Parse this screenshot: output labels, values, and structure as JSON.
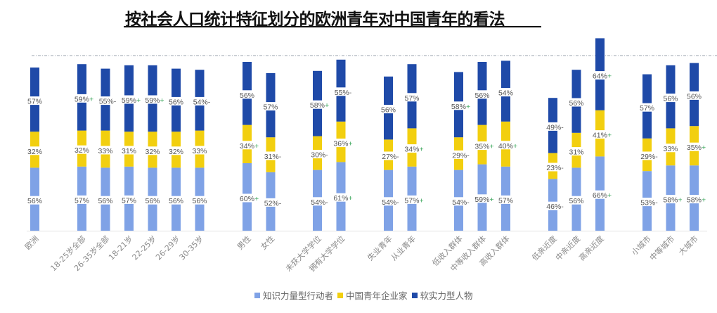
{
  "chart_data": {
    "type": "bar",
    "stacked": true,
    "title": "按社会人口统计特征划分的欧洲青年对中国青年的看法",
    "xlabel": "",
    "ylabel": "",
    "grid": false,
    "reference_line": "dashed horizontal line near top",
    "legend_position": "bottom",
    "colors": {
      "knowledge": "#7fa2e6",
      "entrepreneur": "#f2cf0f",
      "softpower": "#1f4aa8",
      "plus_mark": "#3aa65a",
      "minus_mark": "#666666"
    },
    "series": [
      {
        "key": "knowledge",
        "name": "知识力量型行动者"
      },
      {
        "key": "entrepreneur",
        "name": "中国青年企业家"
      },
      {
        "key": "softpower",
        "name": "软实力型人物"
      }
    ],
    "groups": [
      {
        "categories": [
          {
            "label": "欧洲",
            "knowledge": [
              56,
              ""
            ],
            "entrepreneur": [
              32,
              ""
            ],
            "softpower": [
              57,
              ""
            ]
          }
        ]
      },
      {
        "categories": [
          {
            "label": "18-25岁全部",
            "knowledge": [
              57,
              ""
            ],
            "entrepreneur": [
              32,
              ""
            ],
            "softpower": [
              59,
              "+"
            ]
          },
          {
            "label": "26-35岁全部",
            "knowledge": [
              56,
              ""
            ],
            "entrepreneur": [
              33,
              ""
            ],
            "softpower": [
              55,
              "-"
            ]
          },
          {
            "label": "18-21岁",
            "knowledge": [
              57,
              ""
            ],
            "entrepreneur": [
              31,
              ""
            ],
            "softpower": [
              59,
              "+"
            ]
          },
          {
            "label": "22-25岁",
            "knowledge": [
              56,
              ""
            ],
            "entrepreneur": [
              32,
              ""
            ],
            "softpower": [
              59,
              "+"
            ]
          },
          {
            "label": "26-29岁",
            "knowledge": [
              56,
              ""
            ],
            "entrepreneur": [
              32,
              ""
            ],
            "softpower": [
              56,
              ""
            ]
          },
          {
            "label": "30-35岁",
            "knowledge": [
              56,
              ""
            ],
            "entrepreneur": [
              33,
              ""
            ],
            "softpower": [
              54,
              "-"
            ]
          }
        ]
      },
      {
        "categories": [
          {
            "label": "男性",
            "knowledge": [
              60,
              "+"
            ],
            "entrepreneur": [
              34,
              "+"
            ],
            "softpower": [
              56,
              ""
            ]
          },
          {
            "label": "女性",
            "knowledge": [
              52,
              "-"
            ],
            "entrepreneur": [
              31,
              "-"
            ],
            "softpower": [
              57,
              ""
            ]
          }
        ]
      },
      {
        "categories": [
          {
            "label": "未获大学学位",
            "knowledge": [
              54,
              "-"
            ],
            "entrepreneur": [
              30,
              "-"
            ],
            "softpower": [
              58,
              "+"
            ]
          },
          {
            "label": "拥有大学学位",
            "knowledge": [
              61,
              "+"
            ],
            "entrepreneur": [
              36,
              "+"
            ],
            "softpower": [
              55,
              "-"
            ]
          }
        ]
      },
      {
        "categories": [
          {
            "label": "失业青年",
            "knowledge": [
              54,
              "-"
            ],
            "entrepreneur": [
              27,
              "-"
            ],
            "softpower": [
              56,
              ""
            ]
          },
          {
            "label": "从业青年",
            "knowledge": [
              57,
              "+"
            ],
            "entrepreneur": [
              34,
              "+"
            ],
            "softpower": [
              57,
              ""
            ]
          }
        ]
      },
      {
        "categories": [
          {
            "label": "低收入群体",
            "knowledge": [
              54,
              "-"
            ],
            "entrepreneur": [
              29,
              "-"
            ],
            "softpower": [
              58,
              "+"
            ]
          },
          {
            "label": "中等收入群体",
            "knowledge": [
              59,
              "+"
            ],
            "entrepreneur": [
              35,
              "+"
            ],
            "softpower": [
              56,
              ""
            ]
          },
          {
            "label": "高收入群体",
            "knowledge": [
              57,
              ""
            ],
            "entrepreneur": [
              40,
              "+"
            ],
            "softpower": [
              54,
              ""
            ]
          }
        ]
      },
      {
        "categories": [
          {
            "label": "低亲近度",
            "knowledge": [
              46,
              "-"
            ],
            "entrepreneur": [
              23,
              "-"
            ],
            "softpower": [
              49,
              "-"
            ]
          },
          {
            "label": "中亲近度",
            "knowledge": [
              56,
              ""
            ],
            "entrepreneur": [
              31,
              ""
            ],
            "softpower": [
              56,
              ""
            ]
          },
          {
            "label": "高亲近度",
            "knowledge": [
              66,
              "+"
            ],
            "entrepreneur": [
              41,
              "+"
            ],
            "softpower": [
              64,
              "+"
            ]
          }
        ]
      },
      {
        "categories": [
          {
            "label": "小城市",
            "knowledge": [
              53,
              "-"
            ],
            "entrepreneur": [
              29,
              "-"
            ],
            "softpower": [
              57,
              ""
            ]
          },
          {
            "label": "中等城市",
            "knowledge": [
              58,
              "+"
            ],
            "entrepreneur": [
              33,
              ""
            ],
            "softpower": [
              56,
              ""
            ]
          },
          {
            "label": "大城市",
            "knowledge": [
              58,
              "+"
            ],
            "entrepreneur": [
              35,
              "+"
            ],
            "softpower": [
              56,
              ""
            ]
          }
        ]
      }
    ],
    "value_suffix": "%"
  }
}
